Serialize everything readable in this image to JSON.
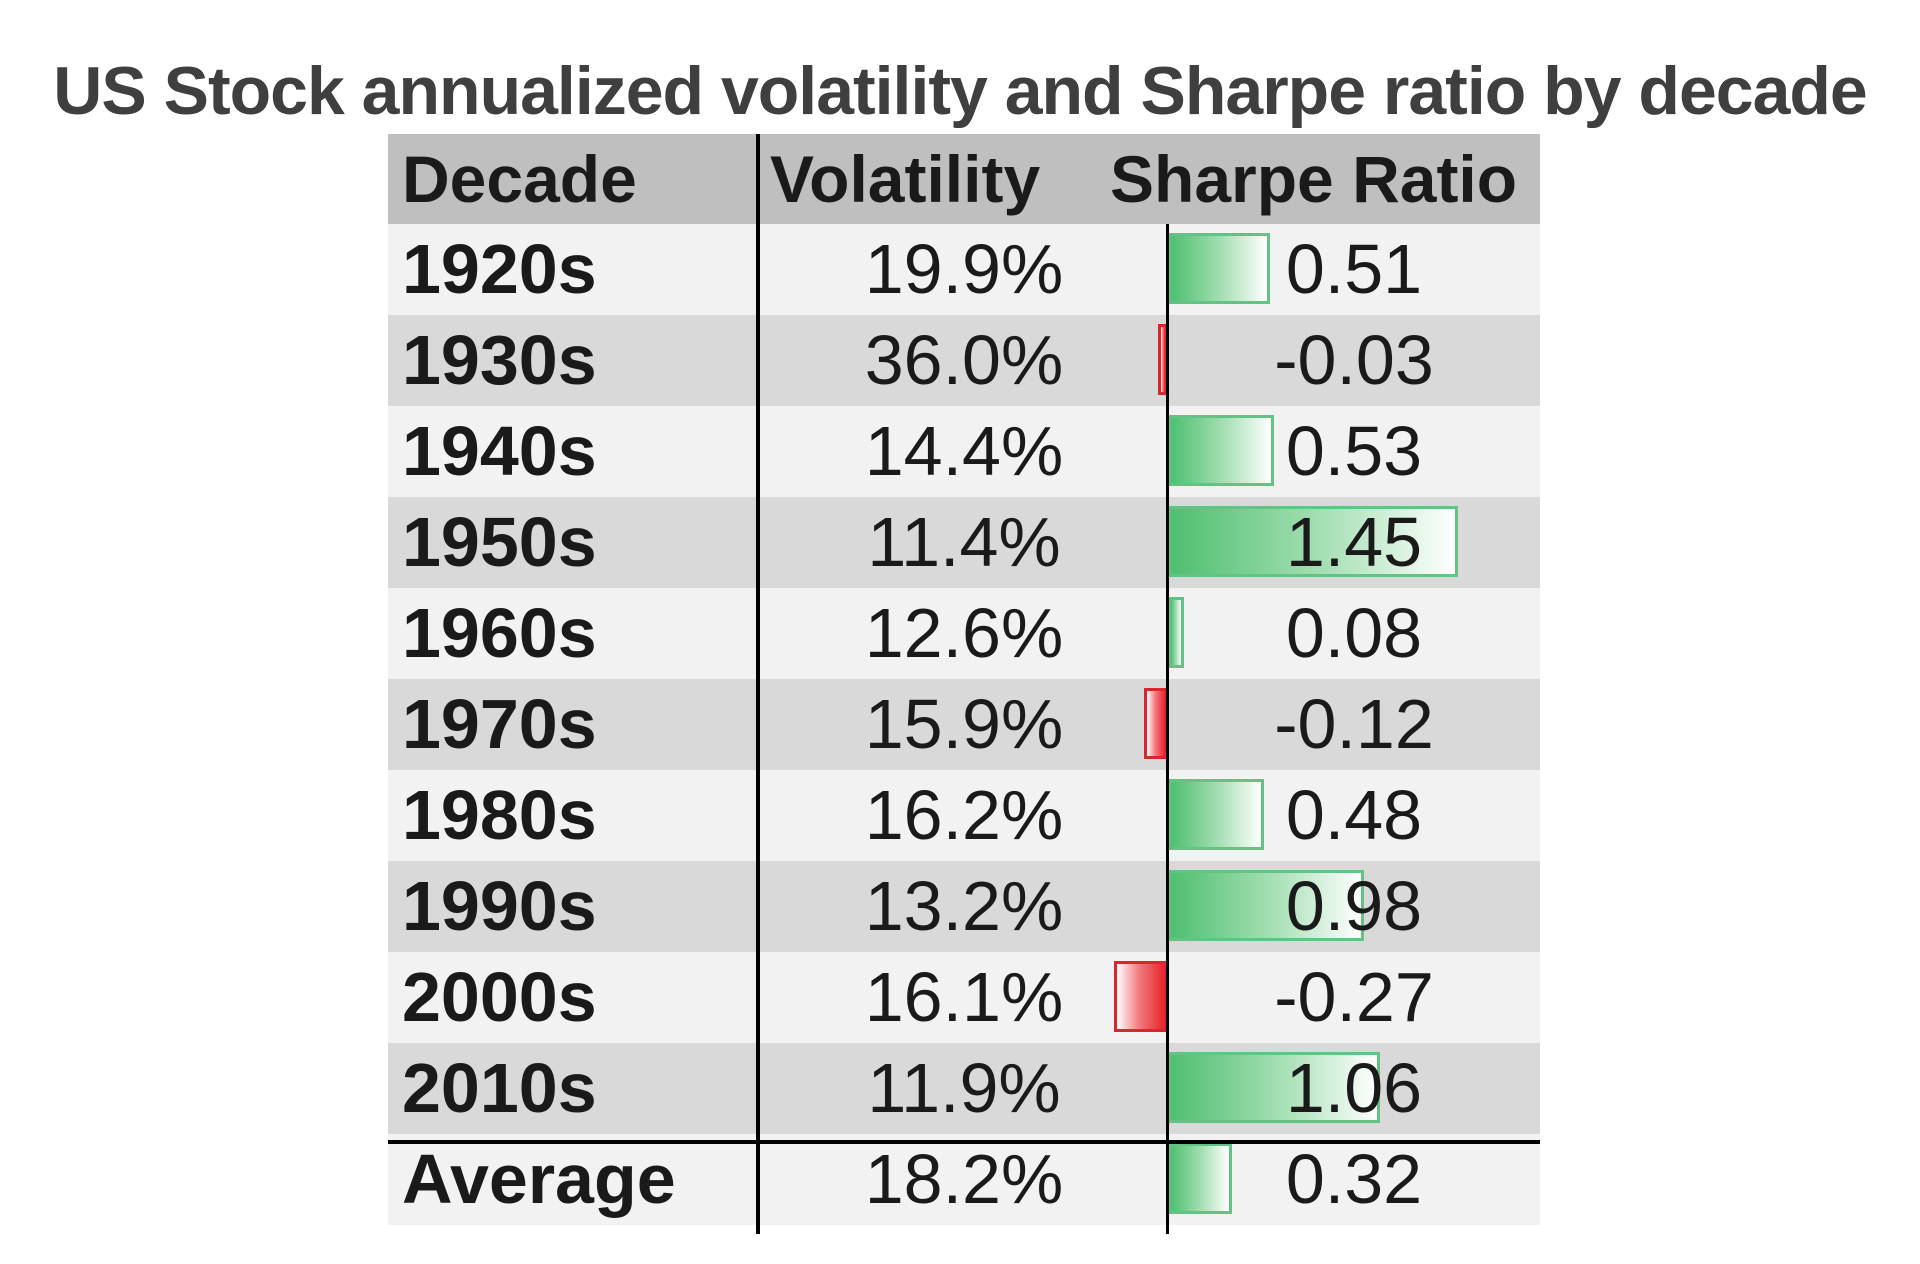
{
  "chart_data": {
    "type": "table",
    "title": "US Stock annualized volatility and Sharpe ratio by decade",
    "columns": [
      "Decade",
      "Volatility",
      "Sharpe Ratio"
    ],
    "rows": [
      {
        "decade": "1920s",
        "volatility": "19.9%",
        "sharpe": "0.51",
        "sharpe_value": 0.51
      },
      {
        "decade": "1930s",
        "volatility": "36.0%",
        "sharpe": "-0.03",
        "sharpe_value": -0.03
      },
      {
        "decade": "1940s",
        "volatility": "14.4%",
        "sharpe": "0.53",
        "sharpe_value": 0.53
      },
      {
        "decade": "1950s",
        "volatility": "11.4%",
        "sharpe": "1.45",
        "sharpe_value": 1.45
      },
      {
        "decade": "1960s",
        "volatility": "12.6%",
        "sharpe": "0.08",
        "sharpe_value": 0.08
      },
      {
        "decade": "1970s",
        "volatility": "15.9%",
        "sharpe": "-0.12",
        "sharpe_value": -0.12
      },
      {
        "decade": "1980s",
        "volatility": "16.2%",
        "sharpe": "0.48",
        "sharpe_value": 0.48
      },
      {
        "decade": "1990s",
        "volatility": "13.2%",
        "sharpe": "0.98",
        "sharpe_value": 0.98
      },
      {
        "decade": "2000s",
        "volatility": "16.1%",
        "sharpe": "-0.27",
        "sharpe_value": -0.27
      },
      {
        "decade": "2010s",
        "volatility": "11.9%",
        "sharpe": "1.06",
        "sharpe_value": 1.06
      }
    ],
    "average": {
      "decade": "Average",
      "volatility": "18.2%",
      "sharpe": "0.32",
      "sharpe_value": 0.32
    },
    "colors": {
      "positive": "#63c384",
      "negative": "#e8222a",
      "header": "#bfbfbf",
      "row_light": "#f2f2f2",
      "row_dark": "#d9d9d9"
    }
  }
}
